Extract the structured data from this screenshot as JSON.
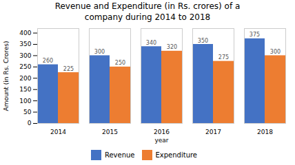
{
  "chart_data": {
    "type": "bar",
    "title": "Revenue and Expenditure (in Rs. crores) of a\ncompany during 2014 to 2018",
    "xlabel": "year",
    "ylabel": "Amount (in Rs. Crores)",
    "categories": [
      "2014",
      "2015",
      "2016",
      "2017",
      "2018"
    ],
    "series": [
      {
        "name": "Revenue",
        "color": "#4472C4",
        "values": [
          260,
          300,
          340,
          350,
          375
        ]
      },
      {
        "name": "Expenditure",
        "color": "#ED7D31",
        "values": [
          225,
          250,
          320,
          275,
          300
        ]
      }
    ],
    "ylim": [
      0,
      420
    ],
    "yticks": [
      0,
      50,
      100,
      150,
      200,
      250,
      300,
      350,
      400
    ],
    "grid": false,
    "legend": "bottom",
    "data_labels": true
  }
}
